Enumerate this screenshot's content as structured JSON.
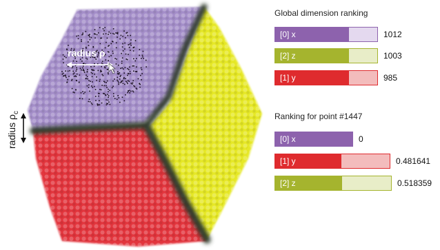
{
  "visualization": {
    "radius_label": "radius ρ",
    "radius_label_c": "radius ρ",
    "radius_subscript_c": "c",
    "colors": {
      "purple": "#a48ec9",
      "yellow": "#e6e827",
      "red": "#e2353d",
      "boundary": "#2e3a2c"
    }
  },
  "global_ranking": {
    "title": "Global dimension ranking",
    "rows": [
      {
        "label": "[0] x",
        "value": "1012",
        "fraction": 1.0,
        "color": "#8d62ad",
        "light": "#e4d9ef"
      },
      {
        "label": "[2] z",
        "value": "1003",
        "fraction": 0.991,
        "color": "#a5b42e",
        "light": "#e8edc8"
      },
      {
        "label": "[1] y",
        "value": "985",
        "fraction": 0.973,
        "color": "#df2b2e",
        "light": "#f3bcbc"
      }
    ]
  },
  "point_ranking": {
    "title": "Ranking for point #1447",
    "rows": [
      {
        "label": "[0] x",
        "value": "0",
        "fraction": 0.0,
        "color": "#8d62ad",
        "light": "#ffffff"
      },
      {
        "label": "[1] y",
        "value": "0.481641",
        "fraction": 0.481641,
        "color": "#df2b2e",
        "light": "#f3bcbc"
      },
      {
        "label": "[2] z",
        "value": "0.518359",
        "fraction": 0.518359,
        "color": "#a5b42e",
        "light": "#e8edc8"
      }
    ]
  }
}
